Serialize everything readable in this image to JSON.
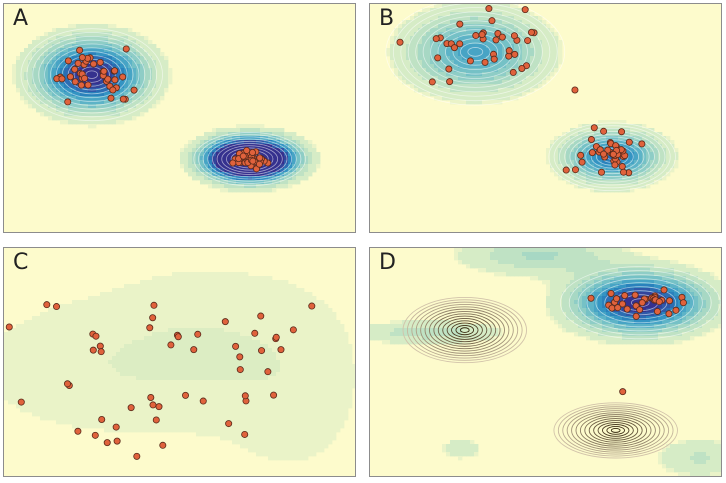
{
  "colors": {
    "background": "#fdfbcc",
    "point_fill": "#e0623c",
    "point_stroke": "#5a2a1a"
  },
  "chart_data": [
    {
      "type": "scatter",
      "panel_label": "A",
      "xlim": [
        0,
        10
      ],
      "ylim": [
        0,
        10
      ],
      "clusters": [
        {
          "center": [
            2.5,
            6.9
          ],
          "spread": [
            0.6,
            0.55
          ],
          "n": 40
        },
        {
          "center": [
            7.0,
            3.2
          ],
          "spread": [
            0.22,
            0.18
          ],
          "n": 40
        }
      ],
      "density_components": [
        {
          "center": [
            2.5,
            6.9
          ],
          "sigma": [
            0.95,
            0.95
          ],
          "weight": 1.0
        },
        {
          "center": [
            7.0,
            3.2
          ],
          "sigma": [
            0.75,
            0.55
          ],
          "weight": 2.2
        }
      ],
      "density_style": "blue",
      "shading_max": 1.0
    },
    {
      "type": "scatter",
      "panel_label": "B",
      "xlim": [
        0,
        10
      ],
      "ylim": [
        0,
        10
      ],
      "clusters": [
        {
          "center": [
            3.1,
            8.2
          ],
          "spread": [
            1.1,
            0.9
          ],
          "n": 38
        },
        {
          "center": [
            6.9,
            3.4
          ],
          "spread": [
            0.45,
            0.4
          ],
          "n": 40
        }
      ],
      "density_components": [
        {
          "center": [
            3.0,
            7.9
          ],
          "sigma": [
            1.2,
            1.1
          ],
          "weight": 1.0
        },
        {
          "center": [
            6.9,
            3.3
          ],
          "sigma": [
            0.85,
            0.7
          ],
          "weight": 1.35
        }
      ],
      "density_style": "blue",
      "shading_max": 1.9
    },
    {
      "type": "scatter",
      "panel_label": "C",
      "xlim": [
        0,
        10
      ],
      "ylim": [
        0,
        10
      ],
      "clusters": [
        {
          "center": [
            5.0,
            5.0
          ],
          "spread": [
            2.4,
            2.2
          ],
          "n": 52
        }
      ],
      "density_components": [
        {
          "center": [
            2.5,
            4.8
          ],
          "sigma": [
            2.0,
            1.7
          ],
          "weight": 0.9
        },
        {
          "center": [
            5.7,
            5.6
          ],
          "sigma": [
            1.8,
            2.0
          ],
          "weight": 1.15
        },
        {
          "center": [
            8.2,
            4.0
          ],
          "sigma": [
            1.2,
            2.4
          ],
          "weight": 0.75
        }
      ],
      "density_style": "green",
      "shading_max": 5.0
    },
    {
      "type": "scatter",
      "panel_label": "D",
      "xlim": [
        0,
        10
      ],
      "ylim": [
        0,
        10
      ],
      "clusters": [
        {
          "center": [
            7.8,
            7.7
          ],
          "spread": [
            0.55,
            0.38
          ],
          "n": 32
        }
      ],
      "extra_points": [
        [
          7.2,
          3.7
        ]
      ],
      "density_components": [
        {
          "center": [
            7.7,
            7.6
          ],
          "sigma": [
            1.15,
            0.8
          ],
          "weight": 1.0
        },
        {
          "center": [
            1.6,
            6.3
          ],
          "sigma": [
            1.5,
            0.35
          ],
          "weight": 0.18
        },
        {
          "center": [
            2.6,
            1.2
          ],
          "sigma": [
            0.45,
            0.35
          ],
          "weight": 0.12
        },
        {
          "center": [
            9.4,
            0.8
          ],
          "sigma": [
            0.9,
            0.6
          ],
          "weight": 0.15
        },
        {
          "center": [
            4.8,
            9.7
          ],
          "sigma": [
            1.5,
            0.6
          ],
          "weight": 0.22
        }
      ],
      "density_style": "blue",
      "shading_max": 1.0,
      "contour_components": [
        {
          "center": [
            2.7,
            6.4
          ],
          "sigma": [
            0.8,
            0.65
          ]
        },
        {
          "center": [
            7.0,
            2.0
          ],
          "sigma": [
            0.8,
            0.55
          ]
        }
      ]
    }
  ]
}
